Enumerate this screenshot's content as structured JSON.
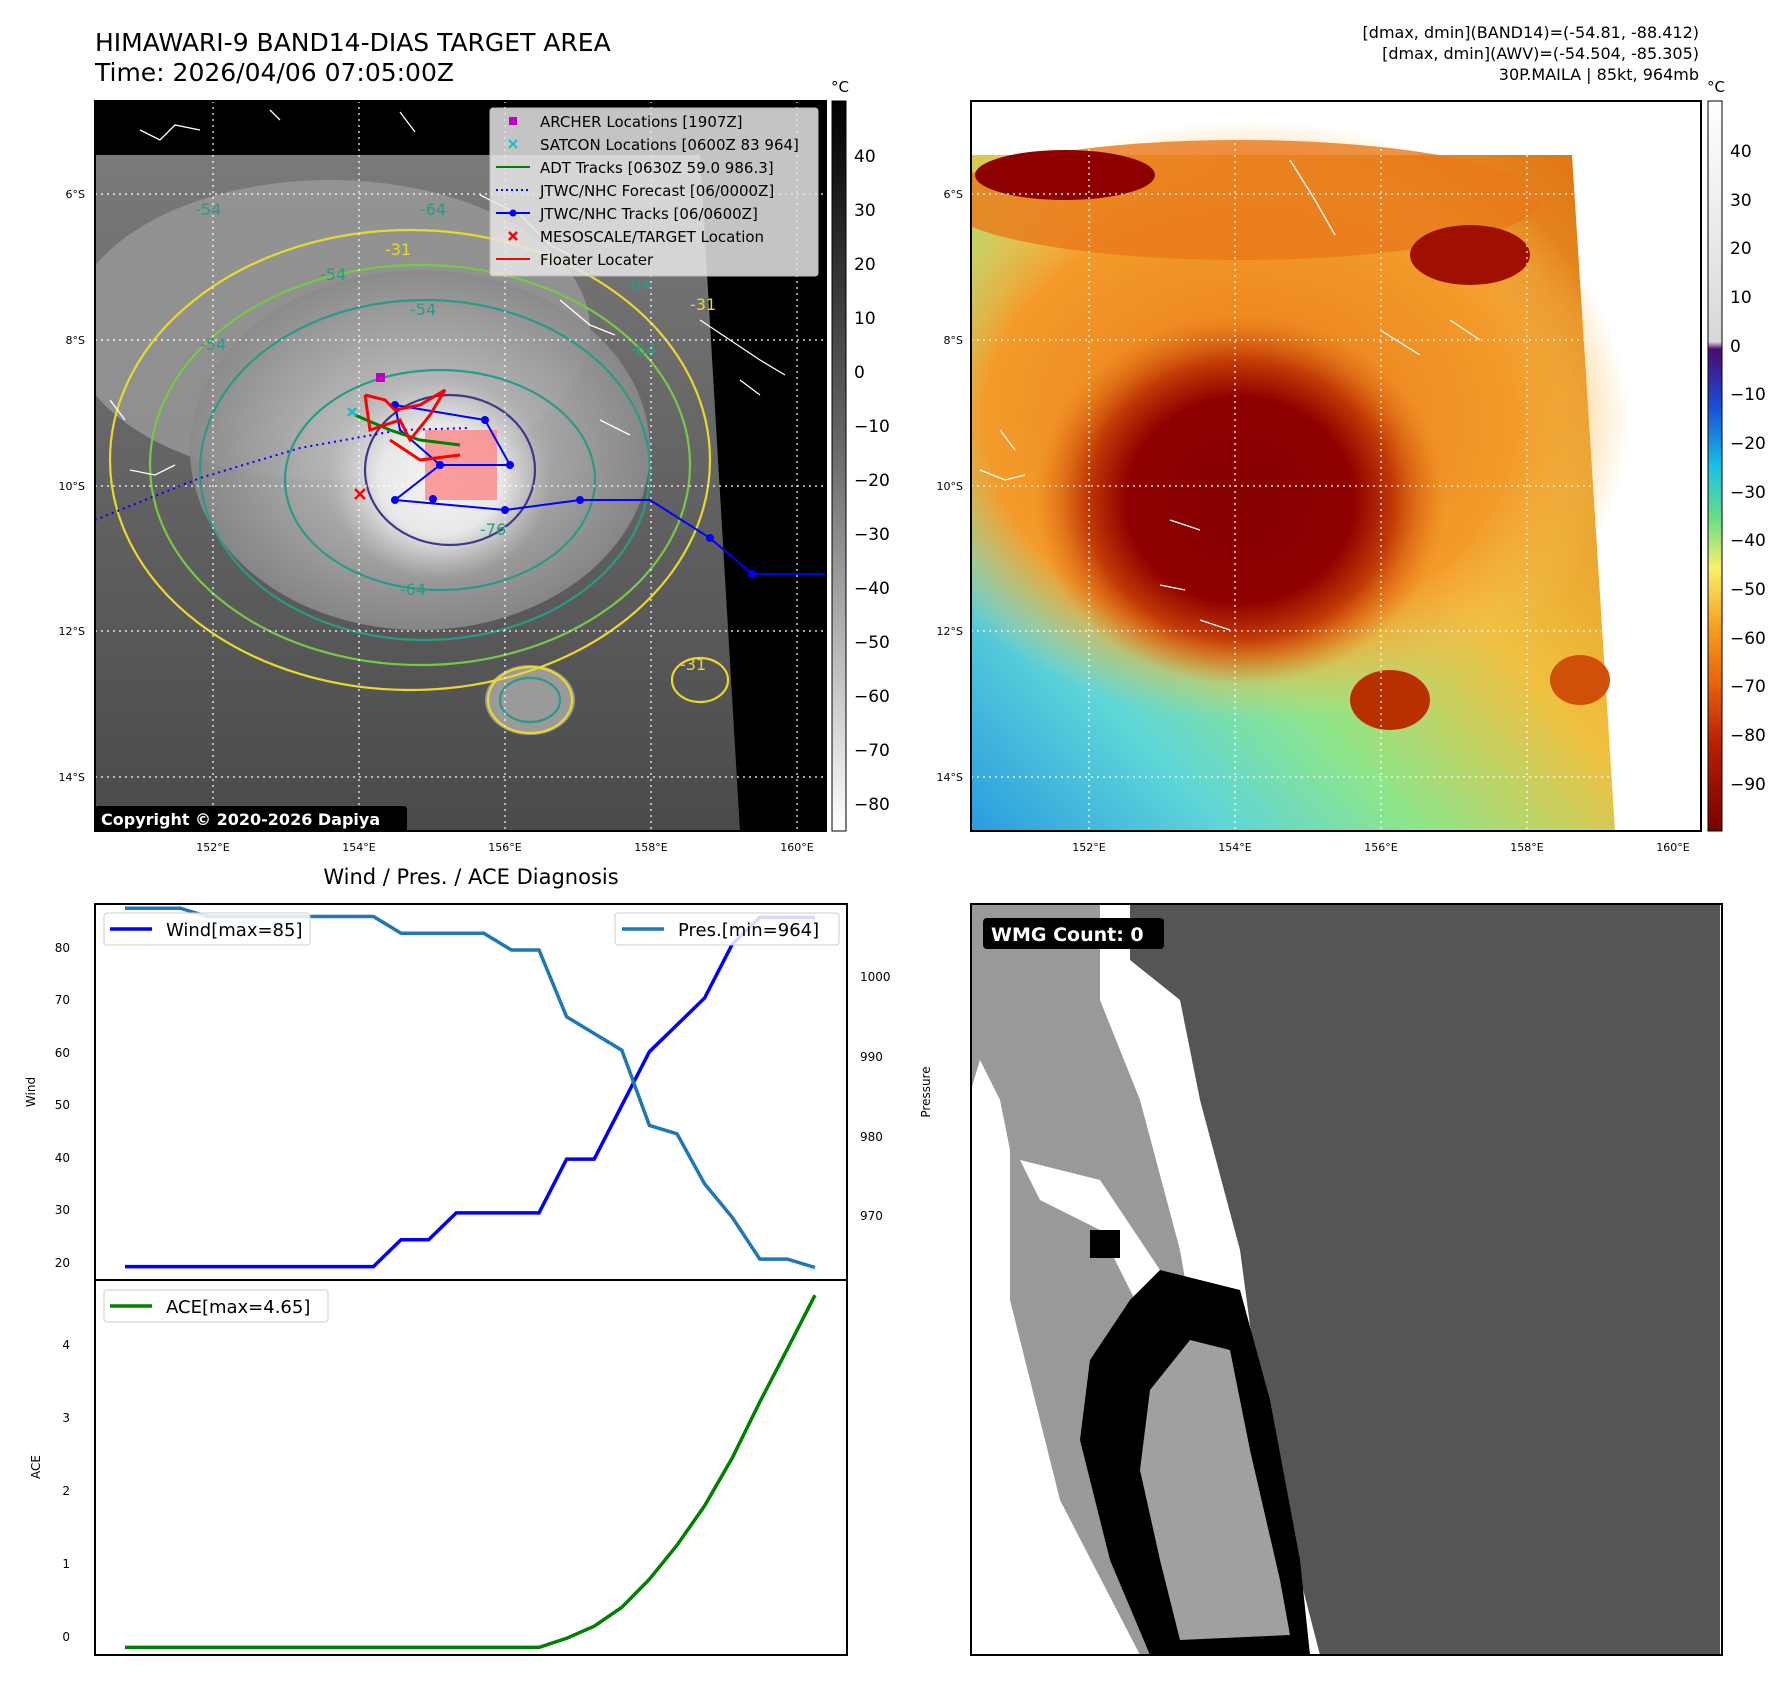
{
  "header": {
    "title": "HIMAWARI-9 BAND14-DIAS TARGET AREA",
    "time": "Time: 2026/04/06 07:05:00Z",
    "band14_range": "[dmax, dmin](BAND14)=(-54.81, -88.412)",
    "awv_range": "[dmax, dmin](AWV)=(-54.504, -85.305)",
    "storm": "30P.MAILA | 85kt, 964mb"
  },
  "copyright": "Copyright © 2020-2026 Dapiya",
  "map": {
    "lat_labels": [
      "6°S",
      "8°S",
      "10°S",
      "12°S",
      "14°S"
    ],
    "lon_labels": [
      "152°E",
      "154°E",
      "156°E",
      "158°E",
      "160°E"
    ],
    "contour_labels": [
      "-54",
      "-54",
      "-54",
      "-54",
      "-64",
      "-64",
      "-64",
      "-64",
      "-76",
      "-31",
      "-31",
      "-31"
    ]
  },
  "legend": {
    "items": [
      {
        "label": "ARCHER Locations [1907Z]",
        "color": "#c000c0",
        "marker": "square"
      },
      {
        "label": "SATCON Locations [0600Z 83 964]",
        "color": "#17becf",
        "marker": "x"
      },
      {
        "label": "ADT Tracks [0630Z 59.0 986.3]",
        "color": "#008000",
        "marker": "line"
      },
      {
        "label": "JTWC/NHC Forecast [06/0000Z]",
        "color": "#0000ff",
        "marker": "dotted"
      },
      {
        "label": "JTWC/NHC Tracks [06/0600Z]",
        "color": "#0000ff",
        "marker": "line-dot"
      },
      {
        "label": "MESOSCALE/TARGET Location",
        "color": "#ff0000",
        "marker": "x"
      },
      {
        "label": "Floater Locater",
        "color": "#ff0000",
        "marker": "line"
      }
    ]
  },
  "colorbar_gray": {
    "unit": "°C",
    "ticks": [
      "40",
      "30",
      "20",
      "10",
      "0",
      "−10",
      "−20",
      "−30",
      "−40",
      "−50",
      "−60",
      "−70",
      "−80"
    ]
  },
  "colorbar_color": {
    "unit": "°C",
    "ticks": [
      "40",
      "30",
      "20",
      "10",
      "0",
      "−10",
      "−20",
      "−30",
      "−40",
      "−50",
      "−60",
      "−70",
      "−80",
      "−90"
    ]
  },
  "diag": {
    "title": "Wind / Pres. / ACE Diagnosis",
    "wind_legend": "Wind[max=85]",
    "pres_legend": "Pres.[min=964]",
    "ace_legend": "ACE[max=4.65]",
    "wind_axis_label": "Wind",
    "pres_axis_label": "Pressure",
    "ace_axis_label": "ACE",
    "wind_ticks": [
      "80",
      "70",
      "60",
      "50",
      "40",
      "30",
      "20"
    ],
    "pres_ticks": [
      "1000",
      "990",
      "980",
      "970"
    ],
    "ace_ticks": [
      "4",
      "3",
      "2",
      "1",
      "0"
    ]
  },
  "wmg": {
    "label": "WMG Count: 0"
  },
  "chart_data": [
    {
      "type": "line",
      "title": "Wind / Pres. / ACE Diagnosis",
      "xlabel": "",
      "ylabel": "Wind",
      "ylim": [
        17.5,
        87.5
      ],
      "x": [
        0,
        1,
        2,
        3,
        4,
        5,
        6,
        7,
        8,
        9,
        10,
        11,
        12,
        13,
        14,
        15,
        16,
        17,
        18,
        19,
        20,
        21,
        22,
        23,
        24,
        25
      ],
      "series": [
        {
          "name": "Wind[max=85]",
          "color": "#0000ff",
          "values": [
            20,
            20,
            20,
            20,
            20,
            20,
            20,
            20,
            20,
            20,
            25,
            25,
            30,
            30,
            30,
            30,
            40,
            40,
            50,
            60,
            65,
            70,
            80,
            85,
            85,
            85
          ]
        }
      ]
    },
    {
      "type": "line",
      "ylabel": "Pressure",
      "ylim": [
        962.5,
        1007.5
      ],
      "x": [
        0,
        1,
        2,
        3,
        4,
        5,
        6,
        7,
        8,
        9,
        10,
        11,
        12,
        13,
        14,
        15,
        16,
        17,
        18,
        19,
        20,
        21,
        22,
        23,
        24,
        25
      ],
      "series": [
        {
          "name": "Pres.[min=964]",
          "color": "#1f77b4",
          "values": [
            1007,
            1007,
            1007,
            1006,
            1006,
            1006,
            1006,
            1006,
            1006,
            1006,
            1004,
            1004,
            1004,
            1004,
            1002,
            1002,
            994,
            992,
            990,
            981,
            980,
            974,
            970,
            965,
            965,
            964
          ]
        }
      ]
    },
    {
      "type": "line",
      "ylabel": "ACE",
      "ylim": [
        -0.1,
        4.85
      ],
      "x": [
        0,
        1,
        2,
        3,
        4,
        5,
        6,
        7,
        8,
        9,
        10,
        11,
        12,
        13,
        14,
        15,
        16,
        17,
        18,
        19,
        20,
        21,
        22,
        23,
        24,
        25
      ],
      "series": [
        {
          "name": "ACE[max=4.65]",
          "color": "#008000",
          "values": [
            0,
            0,
            0,
            0,
            0,
            0,
            0,
            0,
            0,
            0,
            0,
            0,
            0,
            0,
            0,
            0,
            0.12,
            0.28,
            0.53,
            0.9,
            1.35,
            1.87,
            2.5,
            3.24,
            3.94,
            4.65
          ]
        }
      ]
    }
  ]
}
